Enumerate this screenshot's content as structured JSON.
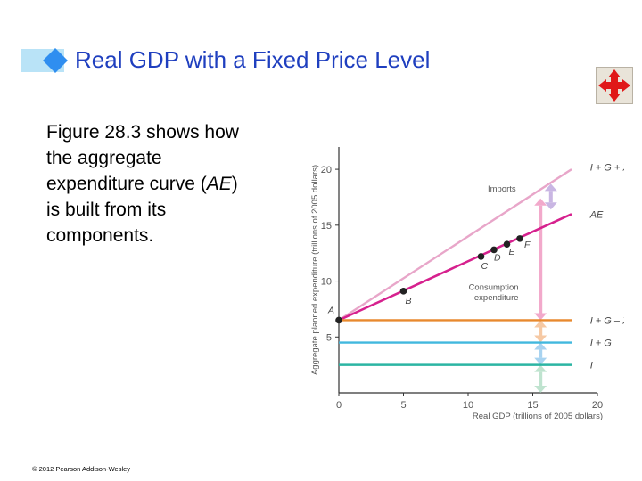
{
  "slide": {
    "title": "Real GDP with a Fixed Price Level",
    "body_line1": "Figure 28.3 shows how",
    "body_line2": "the aggregate",
    "body_line3_pre": "expenditure curve (",
    "body_line3_em": "AE",
    "body_line3_post": ")",
    "body_line4": "is built from its",
    "body_line5": "components.",
    "copyright": "© 2012 Pearson Addison-Wesley"
  },
  "nav_icon": "four-way-move-arrows-icon",
  "colors": {
    "title": "#1f3fbf",
    "ae_line": "#d6218e",
    "igxc_line": "#e8a6c9",
    "igx_line": "#e8892e",
    "ig_line": "#41b8de",
    "i_line": "#2bb5a3",
    "imports_arrow": "#c9b6e3",
    "consumption_arrow": "#f2a9cb"
  },
  "chart_data": {
    "type": "line",
    "xlabel": "Real GDP (trillions of 2005 dollars)",
    "ylabel": "Aggregate planned expenditure (trillions of 2005 dollars)",
    "xlim": [
      0,
      20
    ],
    "ylim": [
      0,
      22
    ],
    "x_ticks": [
      0,
      5,
      10,
      15,
      20
    ],
    "y_ticks": [
      5,
      10,
      15,
      20
    ],
    "grid": false,
    "legend": "none",
    "series": [
      {
        "name": "I + G + X + C",
        "color_key": "igxc_line",
        "x": [
          0,
          18
        ],
        "y": [
          6.5,
          20
        ]
      },
      {
        "name": "AE",
        "color_key": "ae_line",
        "x": [
          0,
          18
        ],
        "y": [
          6.5,
          16
        ]
      },
      {
        "name": "I + G – X",
        "color_key": "igx_line",
        "x": [
          0,
          18
        ],
        "y": [
          6.5,
          6.5
        ]
      },
      {
        "name": "I + G",
        "color_key": "ig_line",
        "x": [
          0,
          18
        ],
        "y": [
          4.5,
          4.5
        ]
      },
      {
        "name": "I",
        "color_key": "i_line",
        "x": [
          0,
          18
        ],
        "y": [
          2.5,
          2.5
        ]
      }
    ],
    "points": [
      {
        "label": "A",
        "x": 0,
        "y": 6.5
      },
      {
        "label": "B",
        "x": 5,
        "y": 9.1
      },
      {
        "label": "C",
        "x": 11,
        "y": 12.2
      },
      {
        "label": "D",
        "x": 12,
        "y": 12.8
      },
      {
        "label": "E",
        "x": 13,
        "y": 13.3
      },
      {
        "label": "F",
        "x": 14,
        "y": 13.8
      }
    ],
    "annotations": [
      {
        "text": "Imports",
        "x": 13.7,
        "y": 18
      },
      {
        "text": "Consumption",
        "x": 13.9,
        "y": 9.2
      },
      {
        "text": "expenditure",
        "x": 13.9,
        "y": 8.3
      }
    ]
  }
}
